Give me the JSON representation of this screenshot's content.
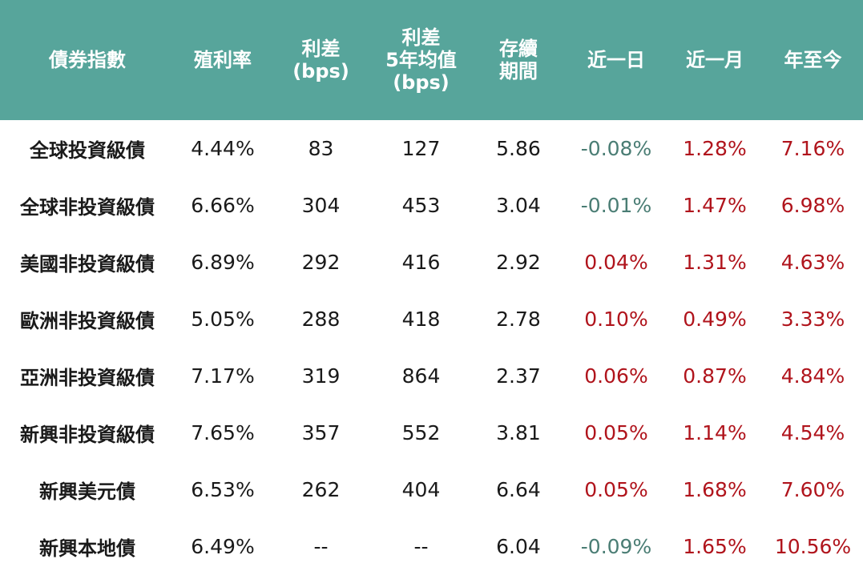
{
  "header": {
    "index": "債券指數",
    "yield": "殖利率",
    "spread": "利差\n(bps)",
    "spread_avg": "利差\n5年均值\n(bps)",
    "duration": "存續\n期間",
    "day": "近一日",
    "month": "近一月",
    "ytd": "年至今"
  },
  "rows": [
    {
      "name": "全球投資級債",
      "yield": "4.44%",
      "spread": "83",
      "spread_avg": "127",
      "duration": "5.86",
      "day": "-0.08%",
      "month": "1.28%",
      "ytd": "7.16%"
    },
    {
      "name": "全球非投資級債",
      "yield": "6.66%",
      "spread": "304",
      "spread_avg": "453",
      "duration": "3.04",
      "day": "-0.01%",
      "month": "1.47%",
      "ytd": "6.98%"
    },
    {
      "name": "美國非投資級債",
      "yield": "6.89%",
      "spread": "292",
      "spread_avg": "416",
      "duration": "2.92",
      "day": "0.04%",
      "month": "1.31%",
      "ytd": "4.63%"
    },
    {
      "name": "歐洲非投資級債",
      "yield": "5.05%",
      "spread": "288",
      "spread_avg": "418",
      "duration": "2.78",
      "day": "0.10%",
      "month": "0.49%",
      "ytd": "3.33%"
    },
    {
      "name": "亞洲非投資級債",
      "yield": "7.17%",
      "spread": "319",
      "spread_avg": "864",
      "duration": "2.37",
      "day": "0.06%",
      "month": "0.87%",
      "ytd": "4.84%"
    },
    {
      "name": "新興非投資級債",
      "yield": "7.65%",
      "spread": "357",
      "spread_avg": "552",
      "duration": "3.81",
      "day": "0.05%",
      "month": "1.14%",
      "ytd": "4.54%"
    },
    {
      "name": "新興美元債",
      "yield": "6.53%",
      "spread": "262",
      "spread_avg": "404",
      "duration": "6.64",
      "day": "0.05%",
      "month": "1.68%",
      "ytd": "7.60%"
    },
    {
      "name": "新興本地債",
      "yield": "6.49%",
      "spread": "--",
      "spread_avg": "--",
      "duration": "6.04",
      "day": "-0.09%",
      "month": "1.65%",
      "ytd": "10.56%"
    }
  ],
  "colors": {
    "header_bg": "#57a59b",
    "negative": "#4a7d74",
    "positive": "#b0141c"
  }
}
